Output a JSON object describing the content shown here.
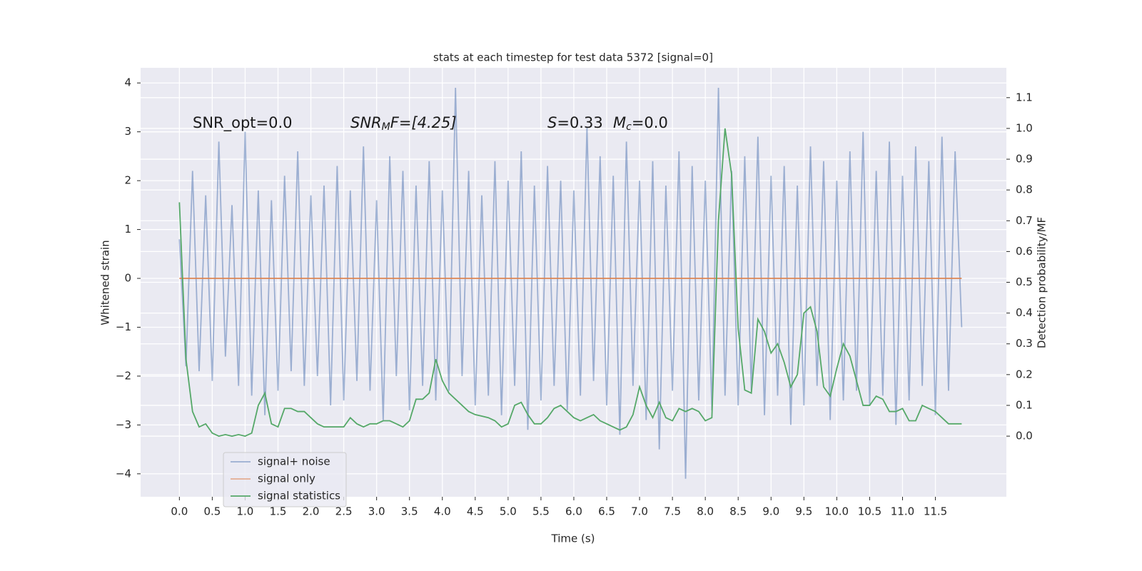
{
  "chart_data": {
    "type": "line",
    "title": "stats at each timestep for test data 5372 [signal=0]",
    "xlabel": "Time (s)",
    "ylabel": "Whitened strain",
    "y2label": "Detection probability/MF",
    "annotations": [
      [
        "SNR_opt=0.0"
      ],
      [
        "SNR",
        "M",
        "F=[4.25]"
      ],
      [
        "S",
        "=0.33"
      ],
      [
        "M",
        "c",
        "=0.0"
      ]
    ],
    "xlim": [
      -0.59,
      12.58
    ],
    "ylim": [
      -4.47,
      4.31
    ],
    "y2lim": [
      -0.197,
      1.197
    ],
    "xticks": [
      {
        "value": 0,
        "label": "0.0"
      },
      0.5,
      {
        "value": 1,
        "label": "1.0"
      },
      1.5,
      {
        "value": 2,
        "label": "2.0"
      },
      2.5,
      {
        "value": 3,
        "label": "3.0"
      },
      3.5,
      {
        "value": 4,
        "label": "4.0"
      },
      4.5,
      {
        "value": 5,
        "label": "5.0"
      },
      5.5,
      {
        "value": 6,
        "label": "6.0"
      },
      6.5,
      {
        "value": 7,
        "label": "7.0"
      },
      7.5,
      {
        "value": 8,
        "label": "8.0"
      },
      8.5,
      {
        "value": 9,
        "label": "9.0"
      },
      9.5,
      {
        "value": 10,
        "label": "10.0"
      },
      10.5,
      {
        "value": 11,
        "label": "11.0"
      },
      11.5
    ],
    "yticks": [
      {
        "value": -4,
        "label": "−4"
      },
      {
        "value": -3,
        "label": "−3"
      },
      {
        "value": -2,
        "label": "−2"
      },
      {
        "value": -1,
        "label": "−1"
      },
      0,
      1,
      2,
      3,
      4
    ],
    "y2ticks": [
      {
        "value": 0,
        "label": "0.0"
      },
      0.1,
      0.2,
      0.3,
      0.4,
      0.5,
      0.6,
      0.7,
      0.8,
      0.9,
      {
        "value": 1,
        "label": "1.0"
      },
      1.1
    ],
    "grid": true,
    "legend": "lower left",
    "x": [
      0,
      0.1,
      0.2,
      0.3,
      0.4,
      0.5,
      0.6,
      0.7,
      0.8,
      0.9,
      1,
      1.1,
      1.2,
      1.3,
      1.4,
      1.5,
      1.6,
      1.7,
      1.8,
      1.9,
      2,
      2.1,
      2.2,
      2.3,
      2.4,
      2.5,
      2.6,
      2.7,
      2.8,
      2.9,
      3,
      3.1,
      3.2,
      3.3,
      3.4,
      3.5,
      3.6,
      3.7,
      3.8,
      3.9,
      4,
      4.1,
      4.2,
      4.3,
      4.4,
      4.5,
      4.6,
      4.7,
      4.8,
      4.9,
      5,
      5.1,
      5.2,
      5.3,
      5.4,
      5.5,
      5.6,
      5.7,
      5.8,
      5.9,
      6,
      6.1,
      6.2,
      6.3,
      6.4,
      6.5,
      6.6,
      6.7,
      6.8,
      6.9,
      7,
      7.1,
      7.2,
      7.3,
      7.4,
      7.5,
      7.6,
      7.7,
      7.8,
      7.9,
      8,
      8.1,
      8.2,
      8.3,
      8.4,
      8.5,
      8.6,
      8.7,
      8.8,
      8.9,
      9,
      9.1,
      9.2,
      9.3,
      9.4,
      9.5,
      9.6,
      9.7,
      9.8,
      9.9,
      10,
      10.1,
      10.2,
      10.3,
      10.4,
      10.5,
      10.6,
      10.7,
      10.8,
      10.9,
      11,
      11.1,
      11.2,
      11.3,
      11.4,
      11.5,
      11.6,
      11.7,
      11.8,
      11.9
    ],
    "series": [
      {
        "name": "signal+ noise",
        "color": "#4c72b0",
        "values": [
          0.8,
          -1.8,
          2.2,
          -1.9,
          1.7,
          -2.1,
          2.8,
          -1.6,
          1.5,
          -2.2,
          3.0,
          -2.4,
          1.8,
          -2.8,
          1.6,
          -2.3,
          2.1,
          -1.9,
          2.6,
          -2.2,
          1.7,
          -2.0,
          1.9,
          -2.6,
          2.3,
          -2.5,
          1.8,
          -2.1,
          2.7,
          -2.3,
          1.6,
          -2.9,
          2.5,
          -2.0,
          2.2,
          -2.7,
          1.9,
          -2.2,
          2.4,
          -2.5,
          1.8,
          -2.3,
          3.9,
          -2.0,
          2.2,
          -2.6,
          1.7,
          -2.4,
          2.4,
          -2.8,
          2.0,
          -2.2,
          2.6,
          -3.1,
          1.9,
          -2.5,
          2.3,
          -2.2,
          2.0,
          -2.7,
          1.8,
          -2.4,
          3.1,
          -2.1,
          2.5,
          -2.6,
          2.1,
          -3.2,
          2.8,
          -2.2,
          2.0,
          -2.9,
          2.4,
          -3.5,
          1.9,
          -2.3,
          2.6,
          -4.1,
          2.3,
          -2.5,
          2.0,
          -2.7,
          3.9,
          -2.4,
          2.2,
          -2.6,
          2.5,
          -2.3,
          2.9,
          -2.8,
          2.1,
          -2.4,
          2.3,
          -3.0,
          1.9,
          -2.6,
          2.7,
          -2.2,
          2.4,
          -2.9,
          2.0,
          -2.5,
          2.6,
          -2.3,
          3.0,
          -2.6,
          2.2,
          -2.4,
          2.8,
          -3.0,
          2.1,
          -2.5,
          2.7,
          -2.2,
          2.4,
          -2.8,
          2.9,
          -2.3,
          2.6,
          -1.0
        ]
      },
      {
        "name": "signal only",
        "color": "#dd8452",
        "values": [
          0,
          0,
          0,
          0,
          0,
          0,
          0,
          0,
          0,
          0,
          0,
          0,
          0,
          0,
          0,
          0,
          0,
          0,
          0,
          0,
          0,
          0,
          0,
          0,
          0,
          0,
          0,
          0,
          0,
          0,
          0,
          0,
          0,
          0,
          0,
          0,
          0,
          0,
          0,
          0,
          0,
          0,
          0,
          0,
          0,
          0,
          0,
          0,
          0,
          0,
          0,
          0,
          0,
          0,
          0,
          0,
          0,
          0,
          0,
          0,
          0,
          0,
          0,
          0,
          0,
          0,
          0,
          0,
          0,
          0,
          0,
          0,
          0,
          0,
          0,
          0,
          0,
          0,
          0,
          0,
          0,
          0,
          0,
          0,
          0,
          0,
          0,
          0,
          0,
          0,
          0,
          0,
          0,
          0,
          0,
          0,
          0,
          0,
          0,
          0,
          0,
          0,
          0,
          0,
          0,
          0,
          0,
          0,
          0,
          0,
          0,
          0,
          0,
          0,
          0,
          0,
          0,
          0,
          0,
          0
        ]
      },
      {
        "name": "signal statistics",
        "color": "#55a868",
        "axis": "y2",
        "values": [
          0.76,
          0.25,
          0.08,
          0.03,
          0.04,
          0.01,
          0.0,
          0.005,
          0.0,
          0.005,
          0.0,
          0.01,
          0.1,
          0.14,
          0.04,
          0.03,
          0.09,
          0.09,
          0.08,
          0.08,
          0.06,
          0.04,
          0.03,
          0.03,
          0.03,
          0.03,
          0.06,
          0.04,
          0.03,
          0.04,
          0.04,
          0.05,
          0.05,
          0.04,
          0.03,
          0.05,
          0.12,
          0.12,
          0.14,
          0.25,
          0.18,
          0.14,
          0.12,
          0.1,
          0.08,
          0.07,
          0.065,
          0.06,
          0.05,
          0.03,
          0.04,
          0.1,
          0.11,
          0.07,
          0.04,
          0.04,
          0.06,
          0.09,
          0.1,
          0.08,
          0.06,
          0.05,
          0.06,
          0.07,
          0.05,
          0.04,
          0.03,
          0.02,
          0.03,
          0.07,
          0.16,
          0.1,
          0.06,
          0.11,
          0.06,
          0.05,
          0.09,
          0.08,
          0.09,
          0.08,
          0.05,
          0.06,
          0.7,
          1.0,
          0.85,
          0.35,
          0.15,
          0.14,
          0.38,
          0.34,
          0.27,
          0.3,
          0.24,
          0.16,
          0.2,
          0.4,
          0.42,
          0.34,
          0.16,
          0.13,
          0.22,
          0.3,
          0.26,
          0.18,
          0.1,
          0.1,
          0.13,
          0.12,
          0.08,
          0.08,
          0.09,
          0.05,
          0.05,
          0.1,
          0.09,
          0.08,
          0.06,
          0.04,
          0.04,
          0.04
        ]
      }
    ]
  }
}
